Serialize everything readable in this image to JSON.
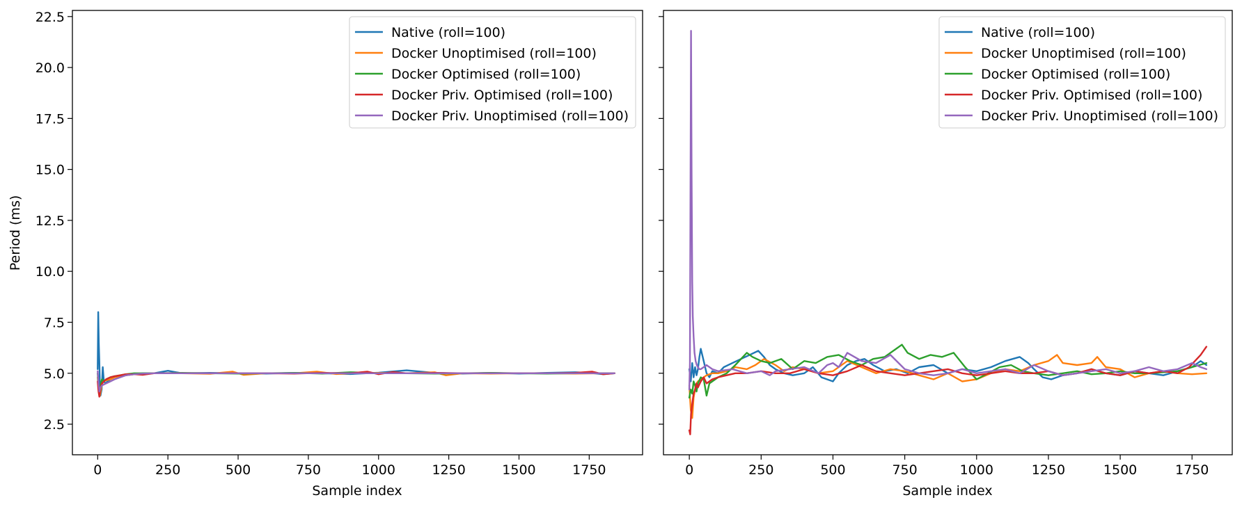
{
  "chart_data": [
    {
      "type": "line",
      "panel": "left",
      "title": "",
      "xlabel": "Sample index",
      "ylabel": "Period (ms)",
      "xlim": [
        -90,
        1940
      ],
      "ylim": [
        1.0,
        22.8
      ],
      "xticks": [
        0,
        250,
        500,
        750,
        1000,
        1250,
        1500,
        1750
      ],
      "xtick_labels": [
        "0",
        "250",
        "500",
        "750",
        "1000",
        "1250",
        "1500",
        "1750"
      ],
      "yticks": [
        2.5,
        5.0,
        7.5,
        10.0,
        12.5,
        15.0,
        17.5,
        20.0,
        22.5
      ],
      "ytick_labels": [
        "2.5",
        "5.0",
        "7.5",
        "10.0",
        "12.5",
        "15.0",
        "17.5",
        "20.0",
        "22.5"
      ],
      "legend_position": "top-right",
      "series": [
        {
          "name": "Native (roll=100)",
          "color": "#1f77b4",
          "x": [
            0,
            2,
            4,
            6,
            8,
            10,
            14,
            18,
            22,
            28,
            35,
            45,
            60,
            80,
            100,
            130,
            160,
            200,
            250,
            300,
            400,
            500,
            600,
            700,
            800,
            900,
            1000,
            1100,
            1200,
            1300,
            1400,
            1500,
            1600,
            1700,
            1750,
            1800,
            1840
          ],
          "y": [
            5.2,
            8.0,
            6.5,
            5.6,
            4.4,
            3.9,
            4.2,
            5.3,
            4.6,
            4.5,
            4.6,
            4.7,
            4.8,
            4.85,
            4.9,
            4.95,
            5.0,
            5.0,
            5.12,
            5.0,
            5.02,
            5.0,
            4.98,
            5.02,
            5.0,
            4.96,
            5.03,
            5.14,
            5.02,
            4.98,
            5.02,
            4.98,
            5.02,
            5.05,
            5.02,
            4.95,
            5.0
          ]
        },
        {
          "name": "Docker Unoptimised (roll=100)",
          "color": "#ff7f0e",
          "x": [
            0,
            4,
            8,
            14,
            20,
            30,
            45,
            60,
            80,
            100,
            130,
            160,
            200,
            300,
            400,
            480,
            520,
            600,
            700,
            780,
            850,
            900,
            1000,
            1100,
            1200,
            1240,
            1300,
            1400,
            1500,
            1600,
            1700,
            1800,
            1840
          ],
          "y": [
            4.8,
            4.2,
            3.9,
            4.4,
            4.6,
            4.65,
            4.7,
            4.8,
            4.85,
            4.9,
            4.95,
            4.98,
            5.0,
            5.0,
            4.97,
            5.08,
            4.92,
            5.0,
            5.0,
            5.08,
            4.96,
            5.0,
            5.02,
            5.0,
            5.05,
            4.9,
            5.0,
            4.98,
            5.0,
            5.0,
            4.98,
            5.0,
            5.0
          ]
        },
        {
          "name": "Docker Optimised (roll=100)",
          "color": "#2ca02c",
          "x": [
            0,
            3,
            6,
            10,
            15,
            22,
            30,
            45,
            60,
            80,
            100,
            130,
            160,
            200,
            300,
            400,
            500,
            600,
            700,
            800,
            900,
            1000,
            1100,
            1200,
            1300,
            1400,
            1500,
            1600,
            1700,
            1800,
            1840
          ],
          "y": [
            5.0,
            4.3,
            3.9,
            4.4,
            4.7,
            4.6,
            4.7,
            4.8,
            4.85,
            4.9,
            4.95,
            5.0,
            5.0,
            5.0,
            5.02,
            5.0,
            4.98,
            5.0,
            5.02,
            4.98,
            5.05,
            5.0,
            5.0,
            4.98,
            5.0,
            5.02,
            5.0,
            4.98,
            5.0,
            5.0,
            5.0
          ]
        },
        {
          "name": "Docker Priv. Optimised (roll=100)",
          "color": "#d62728",
          "x": [
            0,
            3,
            6,
            10,
            15,
            22,
            30,
            45,
            60,
            80,
            100,
            130,
            160,
            200,
            300,
            400,
            500,
            600,
            700,
            800,
            900,
            960,
            1000,
            1050,
            1100,
            1200,
            1300,
            1400,
            1500,
            1600,
            1700,
            1760,
            1800,
            1840
          ],
          "y": [
            4.6,
            4.1,
            3.85,
            4.3,
            4.5,
            4.6,
            4.7,
            4.8,
            4.85,
            4.9,
            4.95,
            4.95,
            4.92,
            5.0,
            5.0,
            5.0,
            5.0,
            5.0,
            4.98,
            5.02,
            5.0,
            5.08,
            4.95,
            5.06,
            5.0,
            5.02,
            5.0,
            5.0,
            5.0,
            5.0,
            5.02,
            5.08,
            4.95,
            5.0
          ]
        },
        {
          "name": "Docker Priv. Unoptimised (roll=100)",
          "color": "#9467bd",
          "x": [
            0,
            3,
            6,
            10,
            15,
            22,
            30,
            45,
            60,
            80,
            100,
            130,
            160,
            200,
            300,
            400,
            500,
            600,
            700,
            800,
            900,
            1000,
            1100,
            1200,
            1300,
            1400,
            1500,
            1600,
            1700,
            1800,
            1840
          ],
          "y": [
            5.1,
            4.5,
            4.1,
            4.3,
            4.4,
            4.45,
            4.5,
            4.6,
            4.7,
            4.8,
            4.9,
            4.95,
            4.98,
            5.0,
            5.0,
            5.0,
            5.0,
            5.0,
            5.0,
            5.0,
            5.0,
            5.0,
            5.0,
            5.0,
            5.0,
            5.0,
            5.0,
            5.0,
            5.0,
            5.0,
            5.0
          ]
        }
      ]
    },
    {
      "type": "line",
      "panel": "right",
      "title": "",
      "xlabel": "Sample index",
      "ylabel": "",
      "xlim": [
        -90,
        1890
      ],
      "ylim": [
        1.0,
        22.8
      ],
      "xticks": [
        0,
        250,
        500,
        750,
        1000,
        1250,
        1500,
        1750
      ],
      "xtick_labels": [
        "0",
        "250",
        "500",
        "750",
        "1000",
        "1250",
        "1500",
        "1750"
      ],
      "yticks": [
        2.5,
        5.0,
        7.5,
        10.0,
        12.5,
        15.0,
        17.5,
        20.0,
        22.5
      ],
      "ytick_labels": [],
      "legend_position": "top-right",
      "series": [
        {
          "name": "Native (roll=100)",
          "color": "#1f77b4",
          "x": [
            0,
            5,
            10,
            15,
            20,
            25,
            30,
            35,
            40,
            50,
            60,
            70,
            80,
            100,
            120,
            150,
            180,
            210,
            240,
            260,
            280,
            300,
            330,
            360,
            400,
            430,
            460,
            500,
            520,
            550,
            580,
            610,
            640,
            680,
            720,
            760,
            800,
            850,
            900,
            950,
            1000,
            1050,
            1100,
            1150,
            1180,
            1200,
            1230,
            1260,
            1300,
            1350,
            1400,
            1450,
            1500,
            1550,
            1600,
            1650,
            1700,
            1750,
            1780,
            1800
          ],
          "y": [
            5.2,
            4.6,
            5.5,
            4.8,
            5.3,
            4.9,
            5.2,
            5.8,
            6.2,
            5.6,
            5.0,
            4.8,
            5.1,
            5.0,
            5.3,
            5.5,
            5.7,
            5.9,
            6.1,
            5.8,
            5.4,
            5.2,
            5.0,
            4.9,
            5.0,
            5.3,
            4.8,
            4.6,
            5.0,
            5.4,
            5.6,
            5.7,
            5.4,
            5.1,
            5.2,
            5.0,
            5.3,
            5.4,
            5.0,
            5.2,
            5.1,
            5.3,
            5.6,
            5.8,
            5.5,
            5.2,
            4.8,
            4.7,
            4.9,
            5.0,
            5.2,
            5.0,
            4.9,
            5.1,
            5.0,
            4.9,
            5.1,
            5.3,
            5.6,
            5.4
          ]
        },
        {
          "name": "Docker Unoptimised (roll=100)",
          "color": "#ff7f0e",
          "x": [
            0,
            5,
            10,
            15,
            20,
            25,
            30,
            40,
            50,
            60,
            80,
            100,
            130,
            160,
            200,
            230,
            260,
            300,
            330,
            360,
            400,
            450,
            500,
            550,
            600,
            650,
            700,
            750,
            800,
            850,
            900,
            950,
            1000,
            1050,
            1100,
            1150,
            1200,
            1250,
            1280,
            1300,
            1350,
            1400,
            1420,
            1450,
            1500,
            1550,
            1600,
            1650,
            1700,
            1750,
            1800
          ],
          "y": [
            4.4,
            3.2,
            2.8,
            3.8,
            4.2,
            4.5,
            4.6,
            4.7,
            4.8,
            4.9,
            5.0,
            5.0,
            5.1,
            5.3,
            5.2,
            5.4,
            5.7,
            5.4,
            5.1,
            5.3,
            5.2,
            5.0,
            5.1,
            5.6,
            5.3,
            5.0,
            5.2,
            5.1,
            4.9,
            4.7,
            5.0,
            4.6,
            4.7,
            5.0,
            5.2,
            5.1,
            5.4,
            5.6,
            5.9,
            5.5,
            5.4,
            5.5,
            5.8,
            5.3,
            5.2,
            4.8,
            5.0,
            5.1,
            5.0,
            4.95,
            5.0
          ]
        },
        {
          "name": "Docker Optimised (roll=100)",
          "color": "#2ca02c",
          "x": [
            0,
            5,
            10,
            15,
            20,
            25,
            30,
            40,
            50,
            60,
            70,
            80,
            100,
            130,
            160,
            180,
            200,
            220,
            250,
            280,
            320,
            360,
            400,
            440,
            480,
            520,
            560,
            600,
            640,
            680,
            720,
            740,
            760,
            800,
            840,
            880,
            920,
            960,
            1000,
            1040,
            1080,
            1120,
            1160,
            1200,
            1250,
            1300,
            1350,
            1400,
            1450,
            1500,
            1550,
            1600,
            1650,
            1700,
            1750,
            1800
          ],
          "y": [
            3.8,
            4.2,
            4.0,
            4.6,
            4.4,
            4.1,
            4.5,
            4.8,
            4.7,
            3.9,
            4.5,
            4.6,
            4.8,
            5.0,
            5.4,
            5.7,
            6.0,
            5.8,
            5.6,
            5.5,
            5.7,
            5.2,
            5.6,
            5.5,
            5.8,
            5.9,
            5.6,
            5.4,
            5.7,
            5.8,
            6.2,
            6.4,
            6.0,
            5.7,
            5.9,
            5.8,
            6.0,
            5.3,
            4.7,
            5.0,
            5.3,
            5.4,
            5.1,
            5.0,
            4.9,
            5.0,
            5.1,
            4.95,
            5.0,
            5.1,
            5.0,
            5.0,
            5.05,
            5.1,
            5.3,
            5.5
          ]
        },
        {
          "name": "Docker Priv. Optimised (roll=100)",
          "color": "#d62728",
          "x": [
            0,
            3,
            6,
            10,
            15,
            20,
            25,
            30,
            40,
            50,
            60,
            80,
            100,
            130,
            160,
            200,
            250,
            300,
            350,
            400,
            450,
            500,
            550,
            600,
            650,
            700,
            750,
            800,
            850,
            900,
            950,
            1000,
            1050,
            1100,
            1150,
            1200,
            1250,
            1300,
            1350,
            1400,
            1450,
            1500,
            1550,
            1600,
            1650,
            1700,
            1740,
            1760,
            1780,
            1800
          ],
          "y": [
            2.2,
            2.0,
            3.0,
            3.5,
            4.0,
            4.2,
            4.5,
            4.3,
            4.6,
            4.8,
            4.5,
            4.7,
            4.8,
            4.9,
            5.0,
            5.0,
            5.1,
            5.0,
            5.0,
            5.2,
            5.0,
            4.9,
            5.1,
            5.4,
            5.1,
            5.0,
            4.9,
            5.0,
            5.1,
            5.2,
            5.0,
            4.9,
            5.0,
            5.1,
            5.0,
            5.0,
            5.1,
            4.9,
            5.0,
            5.2,
            5.0,
            4.9,
            5.1,
            5.0,
            5.1,
            5.0,
            5.3,
            5.6,
            5.9,
            6.3
          ]
        },
        {
          "name": "Docker Priv. Unoptimised (roll=100)",
          "color": "#9467bd",
          "x": [
            0,
            2,
            4,
            6,
            8,
            10,
            12,
            15,
            18,
            22,
            26,
            30,
            35,
            40,
            50,
            60,
            80,
            100,
            150,
            200,
            250,
            280,
            300,
            350,
            400,
            450,
            480,
            500,
            520,
            550,
            600,
            650,
            700,
            750,
            800,
            850,
            900,
            950,
            1000,
            1050,
            1100,
            1150,
            1200,
            1250,
            1300,
            1350,
            1400,
            1450,
            1500,
            1550,
            1600,
            1650,
            1700,
            1750,
            1780,
            1800
          ],
          "y": [
            4.2,
            5.5,
            14.0,
            21.8,
            15.0,
            9.5,
            7.8,
            6.8,
            6.0,
            5.6,
            5.4,
            5.3,
            5.2,
            5.2,
            5.3,
            5.4,
            5.2,
            5.1,
            5.2,
            5.0,
            5.1,
            4.9,
            5.1,
            5.2,
            5.3,
            5.0,
            5.4,
            5.5,
            5.3,
            6.0,
            5.6,
            5.5,
            5.9,
            5.2,
            5.0,
            4.9,
            5.0,
            5.2,
            5.0,
            5.1,
            5.2,
            5.0,
            5.4,
            5.1,
            4.9,
            5.0,
            5.1,
            5.2,
            5.0,
            5.1,
            5.3,
            5.1,
            5.2,
            5.5,
            5.3,
            5.2
          ]
        }
      ]
    }
  ]
}
